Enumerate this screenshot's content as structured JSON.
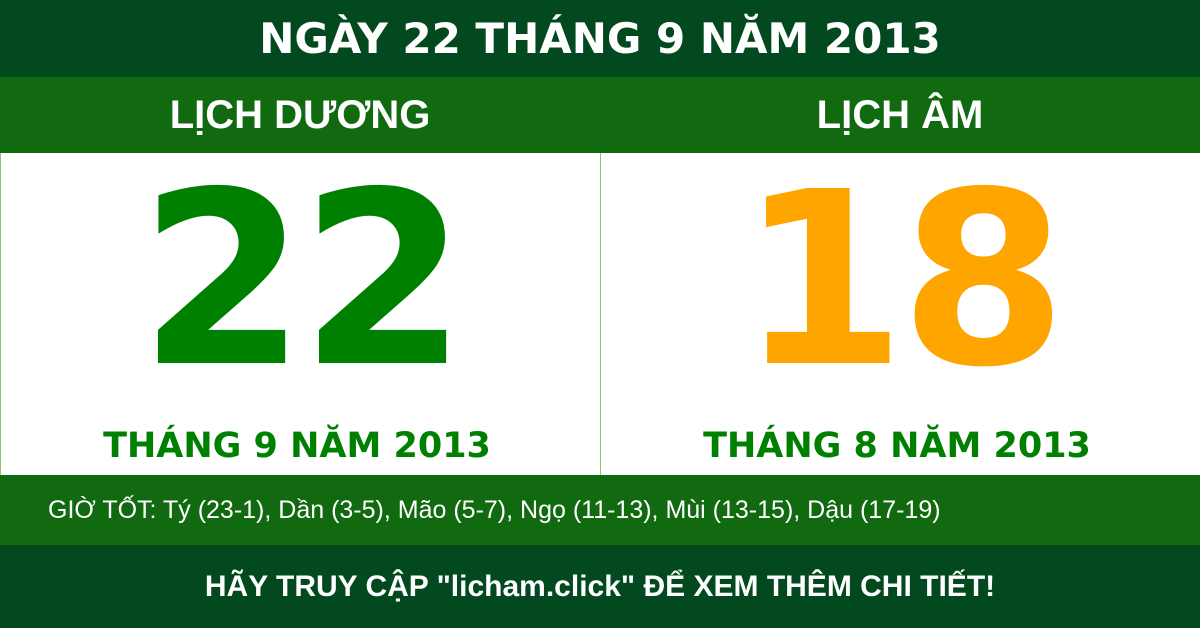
{
  "title": "NGÀY 22 THÁNG 9 NĂM 2013",
  "solar": {
    "heading": "LỊCH DƯƠNG",
    "day": "22",
    "month_year": "THÁNG 9 NĂM 2013"
  },
  "lunar": {
    "heading": "LỊCH ÂM",
    "day": "18",
    "month_year": "THÁNG 8 NĂM 2013"
  },
  "good_hours": "GIỜ TỐT: Tý (23-1), Dần (3-5), Mão (5-7), Ngọ (11-13), Mùi (13-15), Dậu (17-19)",
  "footer": "HÃY TRUY CẬP \"licham.click\" ĐỂ XEM THÊM CHI TIẾT!",
  "colors": {
    "dark_green": "#03491f",
    "green": "#116a10",
    "solar_number": "#008000",
    "lunar_number": "#ffa500"
  }
}
